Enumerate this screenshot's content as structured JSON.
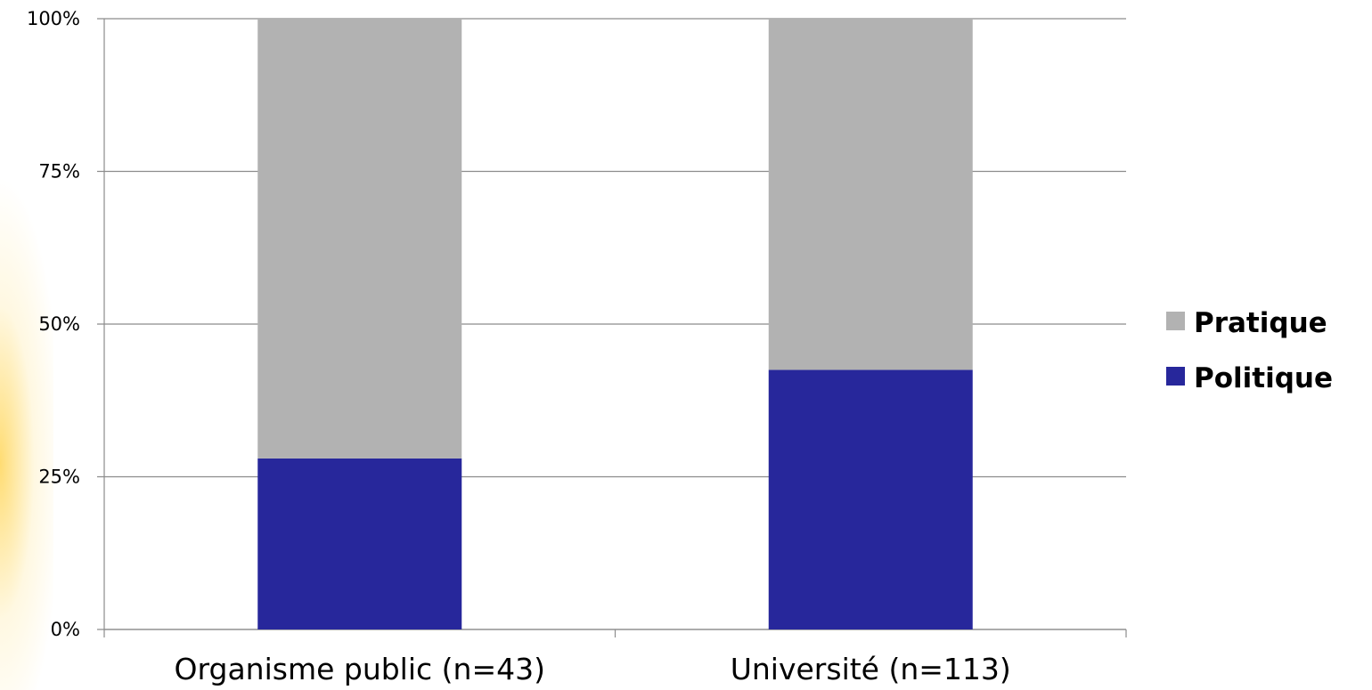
{
  "chart_data": {
    "type": "bar",
    "stacked": true,
    "normalized": true,
    "categories": [
      "Organisme public (n=43)",
      "Université (n=113)"
    ],
    "series": [
      {
        "name": "Politique",
        "values": [
          28,
          42.5
        ],
        "color": "#27279b"
      },
      {
        "name": "Pratique",
        "values": [
          72,
          57.5
        ],
        "color": "#b2b2b2"
      }
    ],
    "yticks": [
      "0%",
      "25%",
      "50%",
      "75%",
      "100%"
    ],
    "ylim": [
      0,
      100
    ],
    "grid": true,
    "legend": {
      "placement": "right",
      "entries": [
        {
          "label": "Pratique",
          "color": "#b2b2b2"
        },
        {
          "label": "Politique",
          "color": "#27279b"
        }
      ]
    },
    "title": "",
    "xlabel": "",
    "ylabel": ""
  }
}
